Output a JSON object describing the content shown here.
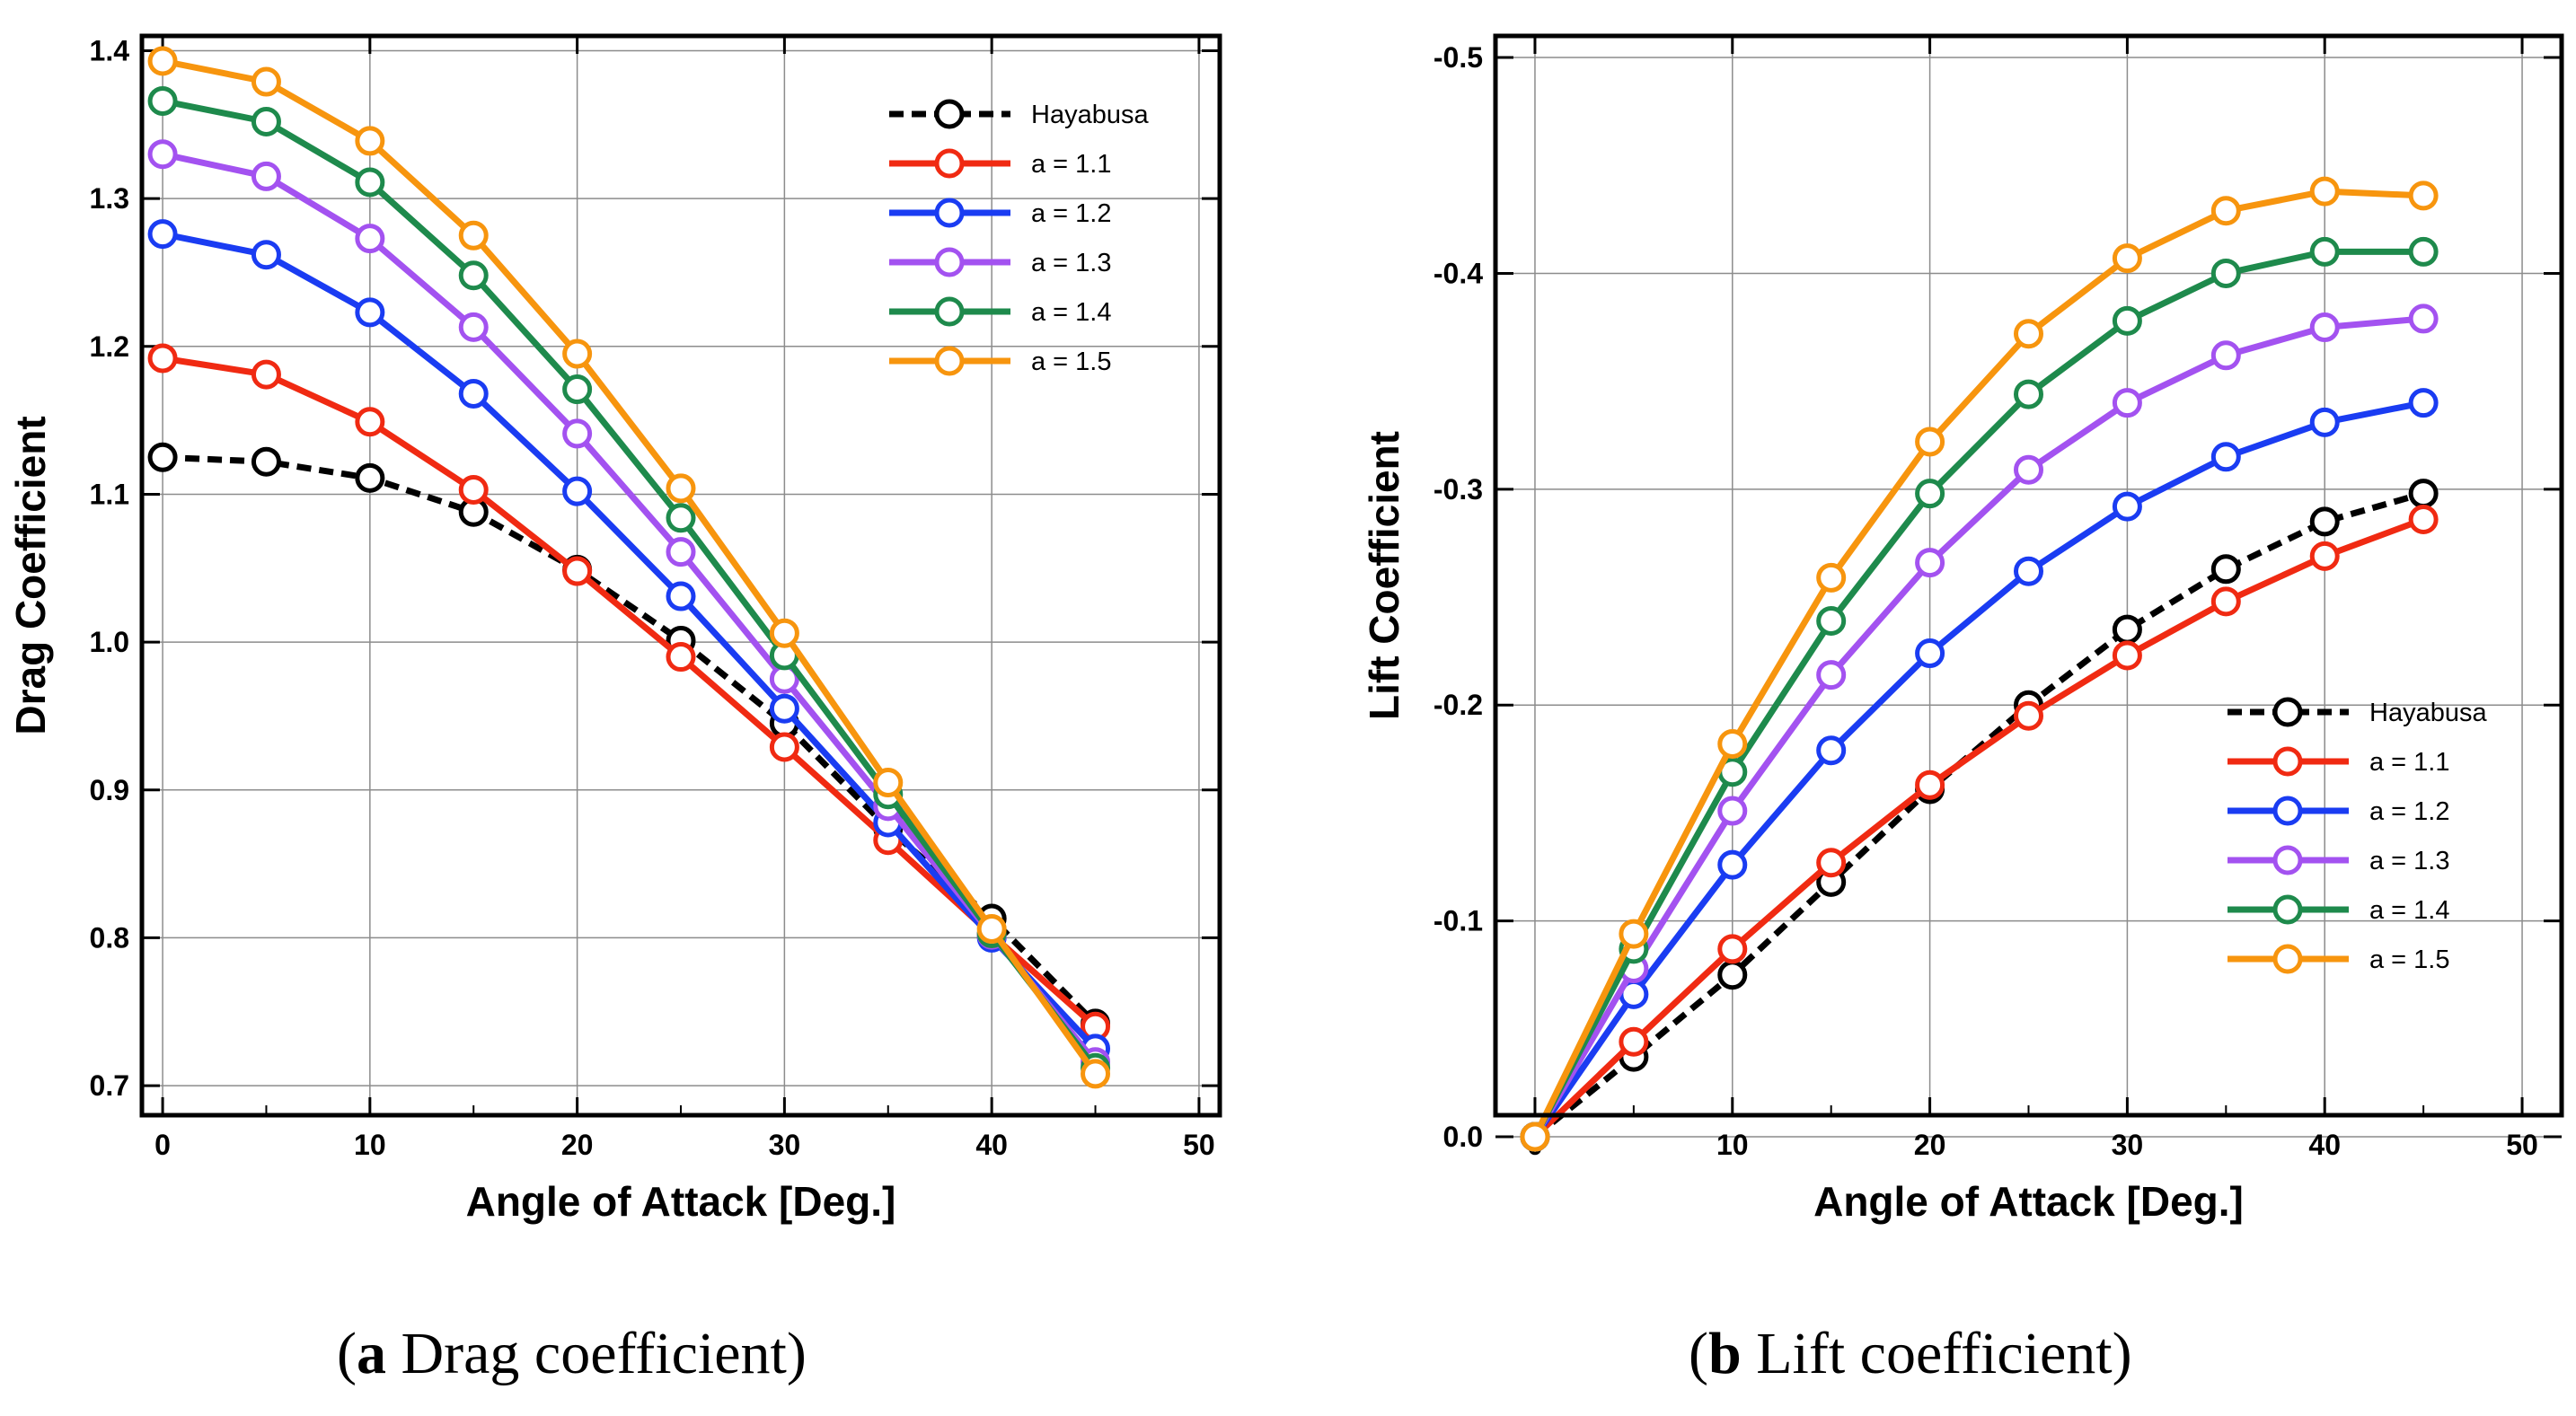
{
  "chart_data": [
    {
      "type": "line",
      "title": "",
      "xlabel": "Angle of Attack [Deg.]",
      "ylabel": "Drag Coefficient",
      "xlim": [
        -1,
        51
      ],
      "ylim": [
        0.68,
        1.41
      ],
      "y_inverted": false,
      "grid": true,
      "legend_position": "top-right",
      "xticks": [
        0,
        10,
        20,
        30,
        40,
        50
      ],
      "xtick_labels": [
        "0",
        "10",
        "20",
        "30",
        "40",
        "50"
      ],
      "yticks": [
        0.7,
        0.8,
        0.9,
        1.0,
        1.1,
        1.2,
        1.3,
        1.4
      ],
      "ytick_labels": [
        "0.7",
        "0.8",
        "0.9",
        "1.0",
        "1.1",
        "1.2",
        "1.3",
        "1.4"
      ],
      "x": [
        0,
        5,
        10,
        15,
        20,
        25,
        30,
        35,
        40,
        45
      ],
      "series": [
        {
          "name": "Hayabusa",
          "color": "#000000",
          "dashed": true,
          "values": [
            1.125,
            1.122,
            1.111,
            1.088,
            1.049,
            1.001,
            0.945,
            0.874,
            0.813,
            0.742
          ]
        },
        {
          "name": "a = 1.1",
          "color": "#f02a12",
          "dashed": false,
          "values": [
            1.192,
            1.181,
            1.149,
            1.103,
            1.048,
            0.99,
            0.929,
            0.866,
            0.802,
            0.74
          ]
        },
        {
          "name": "a = 1.2",
          "color": "#1a3cf2",
          "dashed": false,
          "values": [
            1.276,
            1.262,
            1.223,
            1.168,
            1.102,
            1.031,
            0.955,
            0.878,
            0.8,
            0.725
          ]
        },
        {
          "name": "a = 1.3",
          "color": "#a352f0",
          "dashed": false,
          "values": [
            1.33,
            1.315,
            1.273,
            1.213,
            1.141,
            1.061,
            0.975,
            0.889,
            0.802,
            0.716
          ]
        },
        {
          "name": "a = 1.4",
          "color": "#1e8a4c",
          "dashed": false,
          "values": [
            1.366,
            1.352,
            1.311,
            1.248,
            1.171,
            1.084,
            0.991,
            0.897,
            0.803,
            0.712
          ]
        },
        {
          "name": "a = 1.5",
          "color": "#f7950e",
          "dashed": false,
          "values": [
            1.393,
            1.379,
            1.339,
            1.275,
            1.195,
            1.104,
            1.006,
            0.905,
            0.806,
            0.708
          ]
        }
      ]
    },
    {
      "type": "line",
      "title": "",
      "xlabel": "Angle of Attack [Deg.]",
      "ylabel": "Lift Coefficient",
      "xlim": [
        -2,
        52
      ],
      "ylim": [
        -0.01,
        -0.51
      ],
      "y_inverted": true,
      "grid": true,
      "legend_position": "bottom-right",
      "xticks": [
        0,
        10,
        20,
        30,
        40,
        50
      ],
      "xtick_labels": [
        "0",
        "10",
        "20",
        "30",
        "40",
        "50"
      ],
      "yticks": [
        0.0,
        -0.1,
        -0.2,
        -0.3,
        -0.4,
        -0.5
      ],
      "ytick_labels": [
        "0.0",
        "-0.1",
        "-0.2",
        "-0.3",
        "-0.4",
        "-0.5"
      ],
      "x": [
        0,
        5,
        10,
        15,
        20,
        25,
        30,
        35,
        40,
        45
      ],
      "series": [
        {
          "name": "Hayabusa",
          "color": "#000000",
          "dashed": true,
          "values": [
            0.0,
            -0.037,
            -0.075,
            -0.118,
            -0.161,
            -0.2,
            -0.235,
            -0.263,
            -0.285,
            -0.298
          ]
        },
        {
          "name": "a = 1.1",
          "color": "#f02a12",
          "dashed": false,
          "values": [
            0.0,
            -0.044,
            -0.087,
            -0.127,
            -0.163,
            -0.195,
            -0.223,
            -0.248,
            -0.269,
            -0.286
          ]
        },
        {
          "name": "a = 1.2",
          "color": "#1a3cf2",
          "dashed": false,
          "values": [
            0.0,
            -0.066,
            -0.126,
            -0.179,
            -0.224,
            -0.262,
            -0.292,
            -0.315,
            -0.331,
            -0.34
          ]
        },
        {
          "name": "a = 1.3",
          "color": "#a352f0",
          "dashed": false,
          "values": [
            0.0,
            -0.078,
            -0.151,
            -0.214,
            -0.266,
            -0.309,
            -0.34,
            -0.362,
            -0.375,
            -0.379
          ]
        },
        {
          "name": "a = 1.4",
          "color": "#1e8a4c",
          "dashed": false,
          "values": [
            0.0,
            -0.087,
            -0.169,
            -0.239,
            -0.298,
            -0.344,
            -0.378,
            -0.4,
            -0.41,
            -0.41
          ]
        },
        {
          "name": "a = 1.5",
          "color": "#f7950e",
          "dashed": false,
          "values": [
            0.0,
            -0.094,
            -0.182,
            -0.259,
            -0.322,
            -0.372,
            -0.407,
            -0.429,
            -0.438,
            -0.436
          ]
        }
      ]
    }
  ],
  "captions": [
    {
      "label": "a",
      "text": " Drag coefficient"
    },
    {
      "label": "b",
      "text": " Lift coefficient"
    }
  ]
}
